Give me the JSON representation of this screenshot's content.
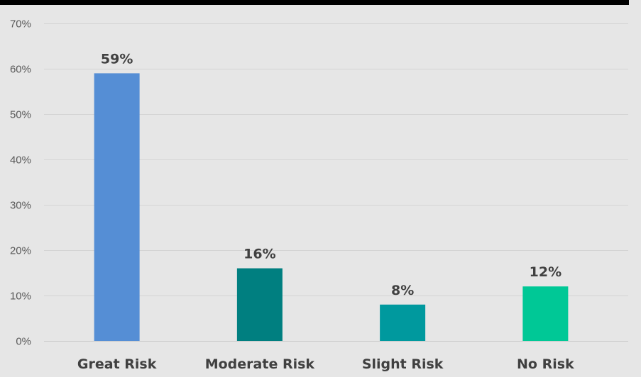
{
  "chart_data": {
    "type": "bar",
    "title": "",
    "xlabel": "",
    "ylabel": "",
    "categories": [
      "Great Risk",
      "Moderate Risk",
      "Slight Risk",
      "No Risk"
    ],
    "values": [
      59,
      16,
      8,
      12
    ],
    "data_labels": [
      "59%",
      "16%",
      "8%",
      "12%"
    ],
    "bar_colors": [
      "#558ed5",
      "#007f80",
      "#00999e",
      "#00c896"
    ],
    "ylim": [
      0,
      70
    ],
    "yticks": [
      0,
      10,
      20,
      30,
      40,
      50,
      60,
      70
    ],
    "ytick_labels": [
      "0%",
      "10%",
      "20%",
      "30%",
      "40%",
      "50%",
      "60%",
      "70%"
    ],
    "grid": true,
    "legend": "none"
  },
  "colors": {
    "background": "#e6e6e6",
    "top_rule": "#000000",
    "text": "#404040",
    "tick_text": "#595959"
  }
}
